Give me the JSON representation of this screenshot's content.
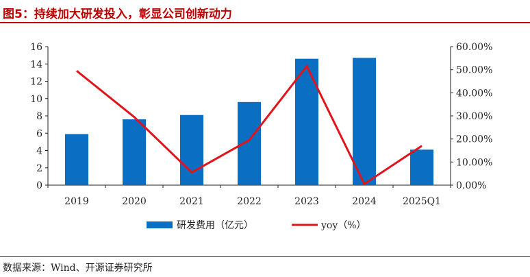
{
  "figure": {
    "title": "图5：持续加大研发投入，彰显公司创新动力",
    "source": "数据来源：Wind、开源证券研究所"
  },
  "colors": {
    "bar": "#0a6fc2",
    "line": "#e0141b",
    "title": "#c00000",
    "axis": "#222222"
  },
  "chart_data": {
    "type": "bar",
    "categories": [
      "2019",
      "2020",
      "2021",
      "2022",
      "2023",
      "2024",
      "2025Q1"
    ],
    "series": [
      {
        "name": "研发费用（亿元）",
        "type": "bar",
        "axis": "left",
        "values": [
          5.9,
          7.6,
          8.1,
          9.6,
          14.6,
          14.7,
          4.1
        ]
      },
      {
        "name": "yoy（%）",
        "type": "line",
        "axis": "right",
        "values": [
          49.5,
          29.5,
          5.5,
          19.5,
          51.5,
          0.5,
          17.0
        ]
      }
    ],
    "y_left": {
      "min": 0,
      "max": 16,
      "step": 2,
      "tick_labels": [
        "0",
        "2",
        "4",
        "6",
        "8",
        "10",
        "12",
        "14",
        "16"
      ]
    },
    "y_right": {
      "min": 0,
      "max": 60,
      "step": 10,
      "tick_labels": [
        "0.00%",
        "10.00%",
        "20.00%",
        "30.00%",
        "40.00%",
        "50.00%",
        "60.00%"
      ]
    },
    "grid": false,
    "legend_position": "bottom"
  }
}
